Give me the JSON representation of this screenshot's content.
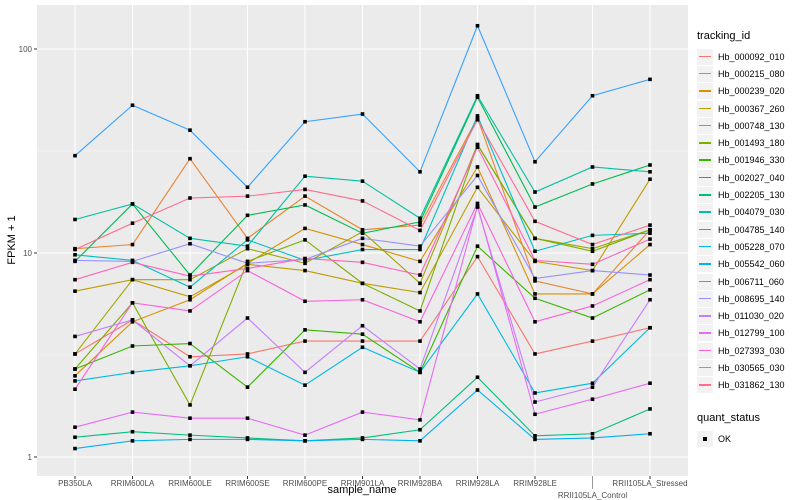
{
  "chart_data": {
    "type": "line",
    "xlabel": "sample_name",
    "ylabel": "FPKM + 1",
    "yscale": "log10",
    "ylim": [
      0.95,
      150
    ],
    "yticks": [
      "1",
      "10",
      "100"
    ],
    "grid": true,
    "legend_position": "right",
    "categories": [
      "PB350LA",
      "RRIM600LA",
      "RRIM600LE",
      "RRIM600SE",
      "RRIM600PE",
      "RRIM901LA",
      "RRIM928BA",
      "RRIM928LA",
      "RRIM928LE",
      "RRII105LA_Control",
      "RRII105LA_Stressed"
    ],
    "legend_title": "tracking_id",
    "series": [
      {
        "name": "Hb_000092_010",
        "color": "#F8766D",
        "values": [
          3.2,
          4.7,
          3.1,
          3.2,
          3.7,
          3.7,
          3.7,
          9.6,
          3.2,
          3.7,
          4.3
        ]
      },
      {
        "name": "Hb_000215_080",
        "color": "#EA8331",
        "values": [
          10.5,
          11,
          29,
          11.8,
          19,
          13,
          13.7,
          46,
          7.3,
          6.3,
          13
        ]
      },
      {
        "name": "Hb_000239_020",
        "color": "#D89000",
        "values": [
          2.5,
          4.6,
          5.9,
          8.9,
          13.2,
          11,
          9.1,
          26.4,
          6.3,
          6.3,
          11
        ]
      },
      {
        "name": "Hb_000367_260",
        "color": "#C09B00",
        "values": [
          6.5,
          7.4,
          6.1,
          8.8,
          8.2,
          7.1,
          6.4,
          21,
          9.1,
          8.2,
          23
        ]
      },
      {
        "name": "Hb_000748_130",
        "color": "#A3A500",
        "values": [
          3.2,
          7.4,
          7.4,
          10.5,
          8.9,
          12.7,
          7.1,
          34,
          11.8,
          10.5,
          13
        ]
      },
      {
        "name": "Hb_001493_180",
        "color": "#7CAE00",
        "values": [
          2.7,
          5.7,
          1.8,
          9.1,
          11.6,
          7.1,
          5.2,
          34,
          11.8,
          10.2,
          13
        ]
      },
      {
        "name": "Hb_001946_330",
        "color": "#39B600",
        "values": [
          2.7,
          3.5,
          3.6,
          2.2,
          4.2,
          4.0,
          2.6,
          10.8,
          6.0,
          4.8,
          6.6
        ]
      },
      {
        "name": "Hb_002027_040",
        "color": "#00BB4E",
        "values": [
          9.1,
          17.4,
          7.8,
          15.3,
          17.2,
          12.5,
          14.2,
          58,
          16.8,
          21.8,
          27
        ]
      },
      {
        "name": "Hb_002205_130",
        "color": "#00BF7D",
        "values": [
          1.25,
          1.33,
          1.28,
          1.24,
          1.2,
          1.24,
          1.36,
          2.46,
          1.27,
          1.3,
          1.72
        ]
      },
      {
        "name": "Hb_004079_030",
        "color": "#00C1A3",
        "values": [
          14.6,
          17.4,
          11.8,
          10.8,
          23.8,
          22.5,
          14.8,
          59,
          19.9,
          26.4,
          25
        ]
      },
      {
        "name": "Hb_004785_140",
        "color": "#00BFC4",
        "values": [
          9.8,
          9.2,
          6.8,
          11.6,
          9.2,
          10.4,
          10.4,
          47,
          10.2,
          12.2,
          12.5
        ]
      },
      {
        "name": "Hb_005228_070",
        "color": "#00BAE0",
        "values": [
          2.36,
          2.6,
          2.8,
          3.1,
          2.25,
          3.45,
          2.6,
          6.3,
          2.06,
          2.3,
          4.3
        ]
      },
      {
        "name": "Hb_005542_060",
        "color": "#00B0F6",
        "values": [
          1.1,
          1.2,
          1.22,
          1.22,
          1.2,
          1.22,
          1.2,
          2.13,
          1.22,
          1.24,
          1.3
        ]
      },
      {
        "name": "Hb_006711_060",
        "color": "#35A2FF",
        "values": [
          30,
          53,
          40,
          21,
          44,
          48,
          25,
          130,
          28,
          59,
          71
        ]
      },
      {
        "name": "Hb_008695_140",
        "color": "#9590FF",
        "values": [
          9.2,
          9.1,
          11.1,
          8.9,
          9.3,
          11.8,
          10.8,
          24,
          7.5,
          8.2,
          7.8
        ]
      },
      {
        "name": "Hb_011030_020",
        "color": "#C77CFF",
        "values": [
          3.9,
          4.7,
          2.8,
          4.8,
          2.6,
          4.4,
          2.7,
          16.8,
          1.86,
          2.2,
          5.9
        ]
      },
      {
        "name": "Hb_012799_100",
        "color": "#E76BF3",
        "values": [
          1.4,
          1.66,
          1.55,
          1.55,
          1.28,
          1.66,
          1.52,
          17,
          1.62,
          1.92,
          2.3
        ]
      },
      {
        "name": "Hb_027393_030",
        "color": "#FA62DB",
        "values": [
          2.15,
          5.7,
          5.2,
          8.2,
          5.8,
          5.9,
          4.6,
          17.5,
          4.6,
          5.5,
          7.4
        ]
      },
      {
        "name": "Hb_030565_030",
        "color": "#FF62BC",
        "values": [
          7.4,
          9,
          7.7,
          8.4,
          9.4,
          9,
          7.8,
          33,
          9.2,
          8.8,
          11.7
        ]
      },
      {
        "name": "Hb_031862_130",
        "color": "#FF6C90",
        "values": [
          10.4,
          14,
          18.6,
          19,
          20.5,
          18,
          12.9,
          45,
          14.3,
          11,
          13.7
        ]
      }
    ],
    "shape_legend_title": "quant_status",
    "shape_legend_items": [
      "OK"
    ]
  }
}
